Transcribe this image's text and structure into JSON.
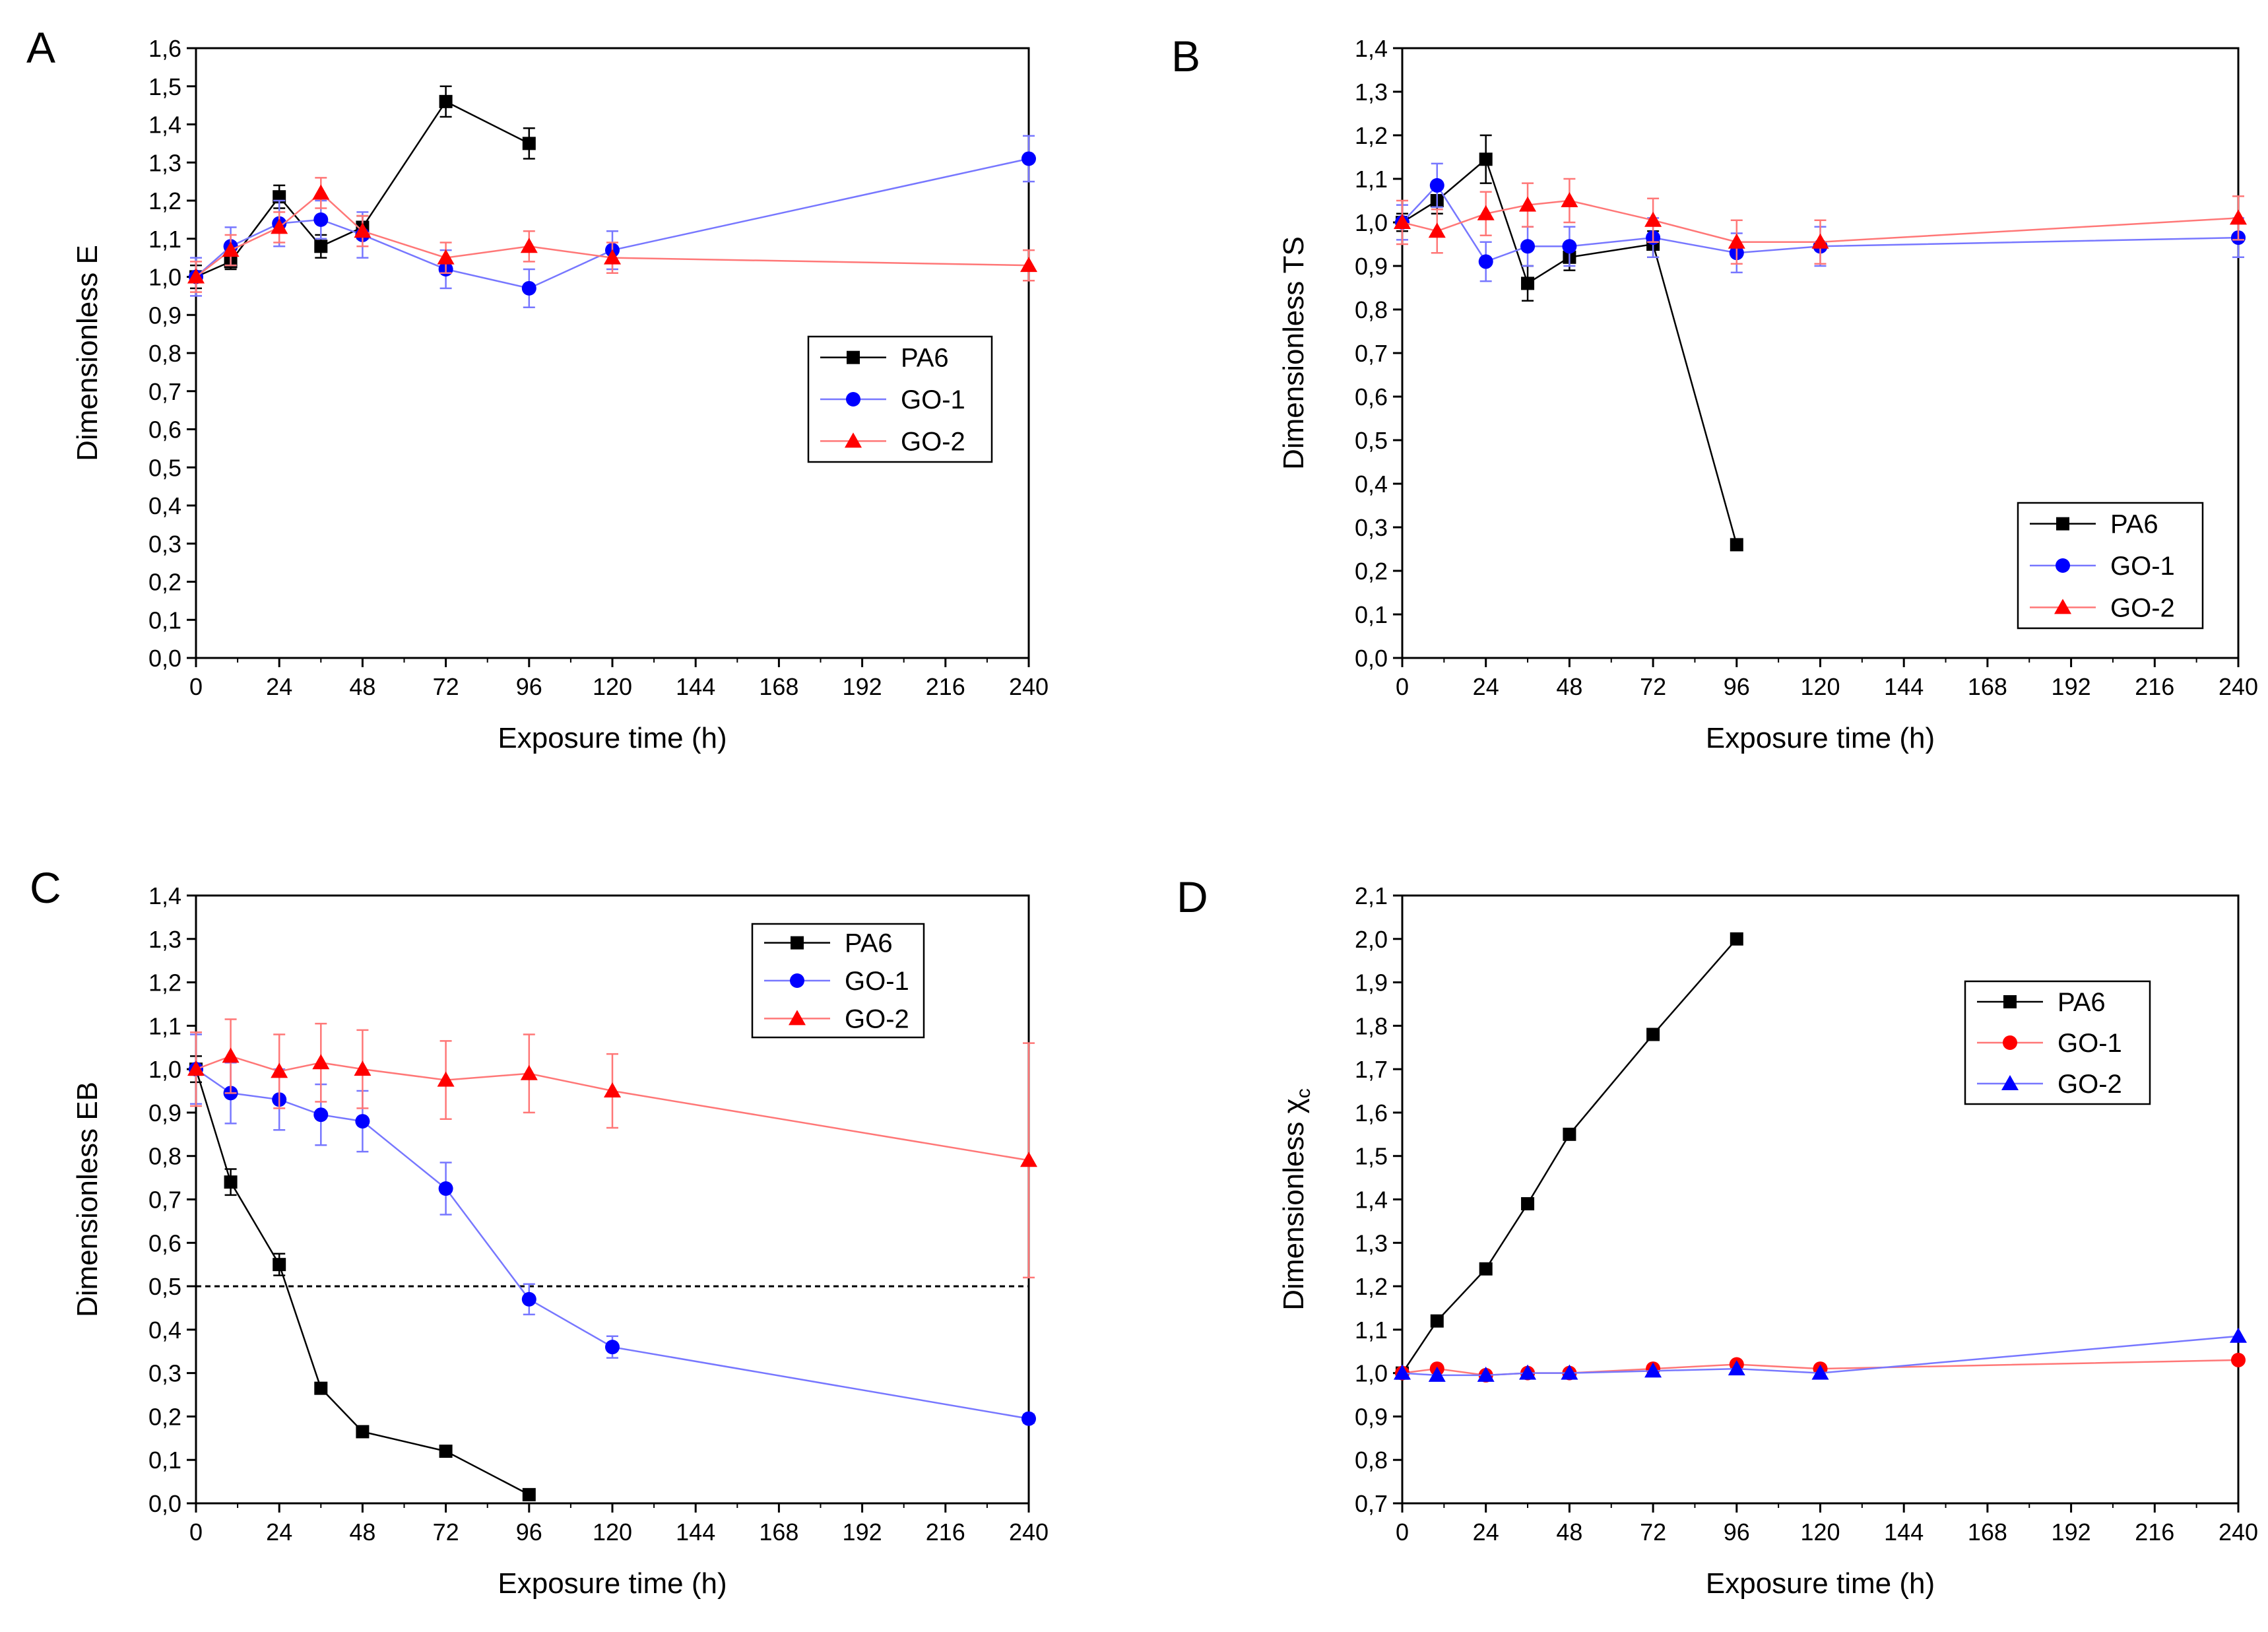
{
  "colors": {
    "PA6": "#000000",
    "blue": "#0000ff",
    "red": "#ff0000",
    "light_blue": "#7777ff",
    "light_red": "#ff7777",
    "gray": "#555555"
  },
  "chart_data": [
    {
      "panel": "A",
      "type": "line",
      "xlabel": "Exposure time (h)",
      "ylabel": "Dimensionless E",
      "xlim": [
        0,
        240
      ],
      "xticks": [
        0,
        24,
        48,
        72,
        96,
        120,
        144,
        168,
        192,
        216,
        240
      ],
      "ylim": [
        0,
        1.6
      ],
      "ystep": 0.1,
      "legend_position": "center-right",
      "series": [
        {
          "name": "PA6",
          "marker": "square",
          "color": "#000000",
          "line": "#000000",
          "x": [
            0,
            10,
            24,
            36,
            48,
            72,
            96
          ],
          "y": [
            1.0,
            1.04,
            1.21,
            1.08,
            1.13,
            1.46,
            1.35
          ],
          "err": [
            0.03,
            0.02,
            0.03,
            0.03,
            0.03,
            0.04,
            0.04
          ]
        },
        {
          "name": "GO-1",
          "marker": "circle",
          "color": "#0000ff",
          "line": "#7777ff",
          "x": [
            0,
            10,
            24,
            36,
            48,
            72,
            96,
            120,
            240
          ],
          "y": [
            1.0,
            1.08,
            1.14,
            1.15,
            1.11,
            1.02,
            0.97,
            1.07,
            1.31
          ],
          "err": [
            0.05,
            0.05,
            0.06,
            0.05,
            0.06,
            0.05,
            0.05,
            0.05,
            0.06
          ]
        },
        {
          "name": "GO-2",
          "marker": "triangle",
          "color": "#ff0000",
          "line": "#ff7777",
          "x": [
            0,
            10,
            24,
            36,
            48,
            72,
            96,
            120,
            240
          ],
          "y": [
            1.0,
            1.07,
            1.13,
            1.22,
            1.12,
            1.05,
            1.08,
            1.05,
            1.03
          ],
          "err": [
            0.04,
            0.04,
            0.04,
            0.04,
            0.04,
            0.04,
            0.04,
            0.04,
            0.04
          ]
        }
      ]
    },
    {
      "panel": "B",
      "type": "line",
      "xlabel": "Exposure time (h)",
      "ylabel": "Dimensionless TS",
      "xlim": [
        0,
        240
      ],
      "xticks": [
        0,
        24,
        48,
        72,
        96,
        120,
        144,
        168,
        192,
        216,
        240
      ],
      "ylim": [
        0,
        1.4
      ],
      "ystep": 0.1,
      "legend_position": "bottom-right",
      "series": [
        {
          "name": "PA6",
          "marker": "square",
          "color": "#000000",
          "line": "#000000",
          "x": [
            0,
            10,
            24,
            36,
            48,
            72,
            96
          ],
          "y": [
            1.0,
            1.05,
            1.145,
            0.86,
            0.92,
            0.95,
            0.26
          ],
          "err": [
            0.02,
            0.03,
            0.055,
            0.04,
            0.03,
            0.03,
            0.0
          ]
        },
        {
          "name": "GO-1",
          "marker": "circle",
          "color": "#0000ff",
          "line": "#7777ff",
          "x": [
            0,
            10,
            24,
            36,
            48,
            72,
            96,
            120,
            240
          ],
          "y": [
            1.0,
            1.085,
            0.91,
            0.945,
            0.945,
            0.965,
            0.93,
            0.945,
            0.965
          ],
          "err": [
            0.04,
            0.05,
            0.045,
            0.045,
            0.045,
            0.045,
            0.045,
            0.045,
            0.045
          ]
        },
        {
          "name": "GO-2",
          "marker": "triangle",
          "color": "#ff0000",
          "line": "#ff7777",
          "x": [
            0,
            10,
            24,
            36,
            48,
            72,
            96,
            120,
            240
          ],
          "y": [
            1.0,
            0.98,
            1.02,
            1.04,
            1.05,
            1.005,
            0.955,
            0.955,
            1.01
          ],
          "err": [
            0.05,
            0.05,
            0.05,
            0.05,
            0.05,
            0.05,
            0.05,
            0.05,
            0.05
          ]
        }
      ]
    },
    {
      "panel": "C",
      "type": "line",
      "xlabel": "Exposure time (h)",
      "ylabel": "Dimensionless EB",
      "xlim": [
        0,
        240
      ],
      "xticks": [
        0,
        24,
        48,
        72,
        96,
        120,
        144,
        168,
        192,
        216,
        240
      ],
      "ylim": [
        0,
        1.4
      ],
      "ystep": 0.1,
      "legend_position": "top-center",
      "reference_line": 0.5,
      "series": [
        {
          "name": "PA6",
          "marker": "square",
          "color": "#000000",
          "line": "#000000",
          "x": [
            0,
            10,
            24,
            36,
            48,
            72,
            96
          ],
          "y": [
            1.0,
            0.74,
            0.55,
            0.265,
            0.165,
            0.12,
            0.02
          ],
          "err": [
            0.03,
            0.03,
            0.025,
            0.01,
            0.01,
            0.01,
            0.0
          ]
        },
        {
          "name": "GO-1",
          "marker": "circle",
          "color": "#0000ff",
          "line": "#7777ff",
          "x": [
            0,
            10,
            24,
            36,
            48,
            72,
            96,
            120,
            240
          ],
          "y": [
            1.0,
            0.945,
            0.93,
            0.895,
            0.88,
            0.725,
            0.47,
            0.36,
            0.195
          ],
          "err": [
            0.08,
            0.07,
            0.07,
            0.07,
            0.07,
            0.06,
            0.035,
            0.025,
            0.01
          ]
        },
        {
          "name": "GO-2",
          "marker": "triangle",
          "color": "#ff0000",
          "line": "#ff7777",
          "x": [
            0,
            10,
            24,
            36,
            48,
            72,
            96,
            120,
            240
          ],
          "y": [
            1.0,
            1.03,
            0.995,
            1.015,
            1.0,
            0.975,
            0.99,
            0.95,
            0.79
          ],
          "err": [
            0.085,
            0.085,
            0.085,
            0.09,
            0.09,
            0.09,
            0.09,
            0.085,
            0.27
          ]
        }
      ]
    },
    {
      "panel": "D",
      "type": "line",
      "xlabel": "Exposure time (h)",
      "ylabel": "Dimensionless χ",
      "ylabel_sub": "c",
      "xlim": [
        0,
        240
      ],
      "xticks": [
        0,
        24,
        48,
        72,
        96,
        120,
        144,
        168,
        192,
        216,
        240
      ],
      "ylim": [
        0.7,
        2.1
      ],
      "ystep": 0.1,
      "legend_position": "top-right",
      "series": [
        {
          "name": "PA6",
          "marker": "square",
          "color": "#000000",
          "line": "#000000",
          "x": [
            0,
            10,
            24,
            36,
            48,
            72,
            96
          ],
          "y": [
            1.0,
            1.12,
            1.24,
            1.39,
            1.55,
            1.78,
            2.0
          ]
        },
        {
          "name": "GO-1",
          "marker": "circle",
          "color": "#ff0000",
          "line": "#ff7777",
          "x": [
            0,
            10,
            24,
            36,
            48,
            72,
            96,
            120,
            240
          ],
          "y": [
            1.0,
            1.01,
            0.995,
            1.0,
            1.0,
            1.01,
            1.02,
            1.01,
            1.03
          ]
        },
        {
          "name": "GO-2",
          "marker": "triangle",
          "color": "#0000ff",
          "line": "#7777ff",
          "x": [
            0,
            10,
            24,
            36,
            48,
            72,
            96,
            120,
            240
          ],
          "y": [
            1.0,
            0.995,
            0.995,
            1.0,
            1.0,
            1.005,
            1.01,
            1.0,
            1.085
          ]
        }
      ]
    }
  ]
}
